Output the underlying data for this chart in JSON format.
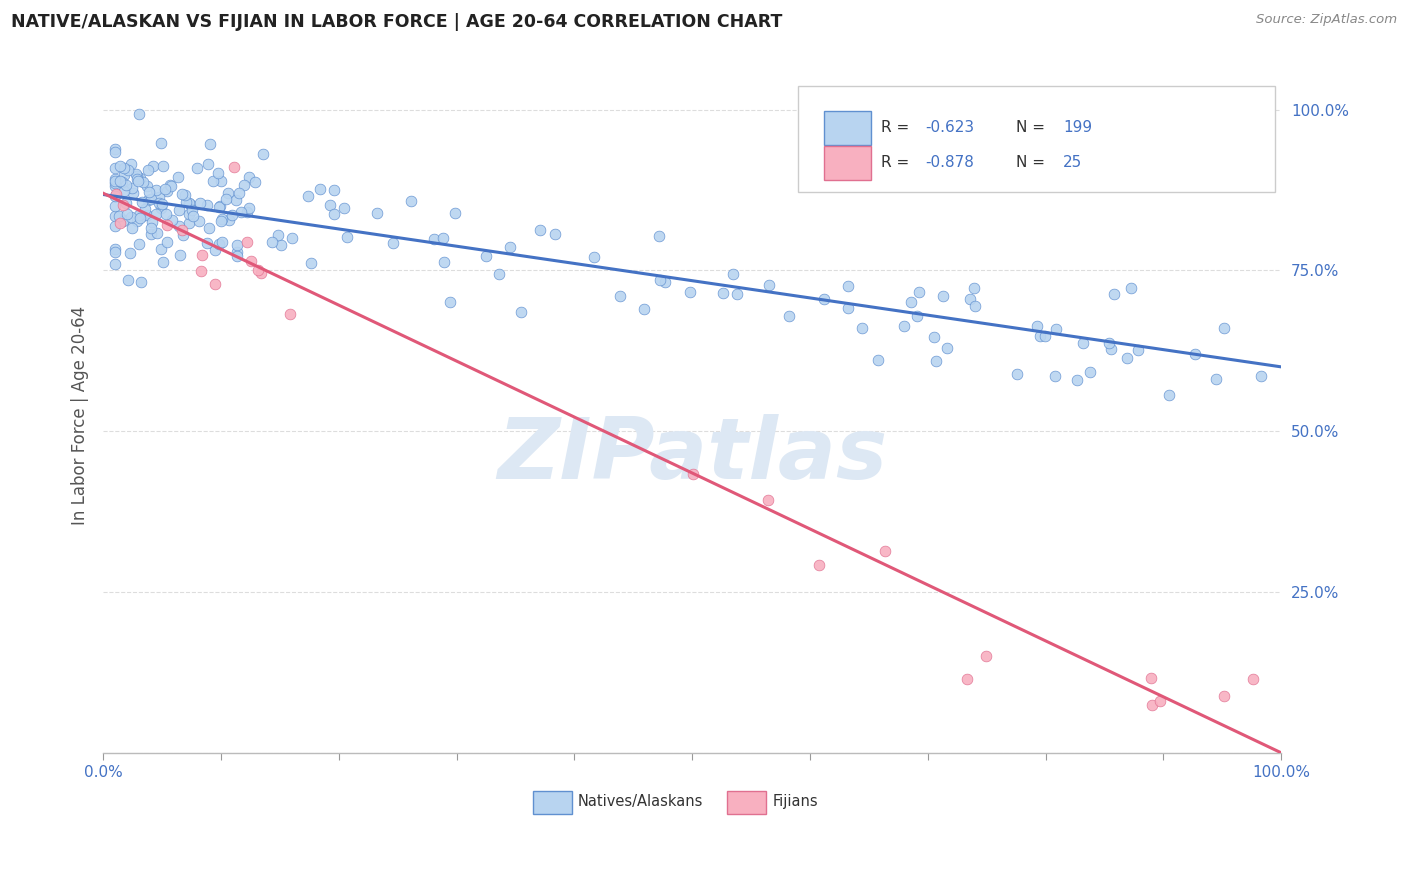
{
  "title": "NATIVE/ALASKAN VS FIJIAN IN LABOR FORCE | AGE 20-64 CORRELATION CHART",
  "source_text": "Source: ZipAtlas.com",
  "ylabel": "In Labor Force | Age 20-64",
  "xlim": [
    0.0,
    1.0
  ],
  "ylim": [
    0.0,
    1.05
  ],
  "x_ticks": [
    0.0,
    0.1,
    0.2,
    0.3,
    0.4,
    0.5,
    0.6,
    0.7,
    0.8,
    0.9,
    1.0
  ],
  "x_tick_labels": [
    "0.0%",
    "",
    "",
    "",
    "",
    "",
    "",
    "",
    "",
    "",
    "100.0%"
  ],
  "y_ticks": [
    0.0,
    0.25,
    0.5,
    0.75,
    1.0
  ],
  "y_tick_labels": [
    "",
    "25.0%",
    "50.0%",
    "75.0%",
    "100.0%"
  ],
  "blue_R": "-0.623",
  "blue_N": "199",
  "pink_R": "-0.878",
  "pink_N": "25",
  "blue_line_start_y": 0.868,
  "blue_line_end_y": 0.6,
  "pink_line_start_y": 0.87,
  "pink_line_end_y": 0.0,
  "blue_fill_color": "#b8d4f0",
  "blue_edge_color": "#6090d0",
  "blue_line_color": "#4472c4",
  "pink_fill_color": "#f8b0c0",
  "pink_edge_color": "#e07090",
  "pink_line_color": "#e05878",
  "axis_tick_color": "#4472c4",
  "title_color": "#222222",
  "source_color": "#888888",
  "grid_color": "#dddddd",
  "watermark_text": "ZIPatlas",
  "watermark_color": "#dde8f4",
  "legend_label_blue": "Natives/Alaskans",
  "legend_label_pink": "Fijians",
  "legend_text_color": "#333333",
  "legend_rn_color": "#4472c4",
  "background_color": "#ffffff"
}
